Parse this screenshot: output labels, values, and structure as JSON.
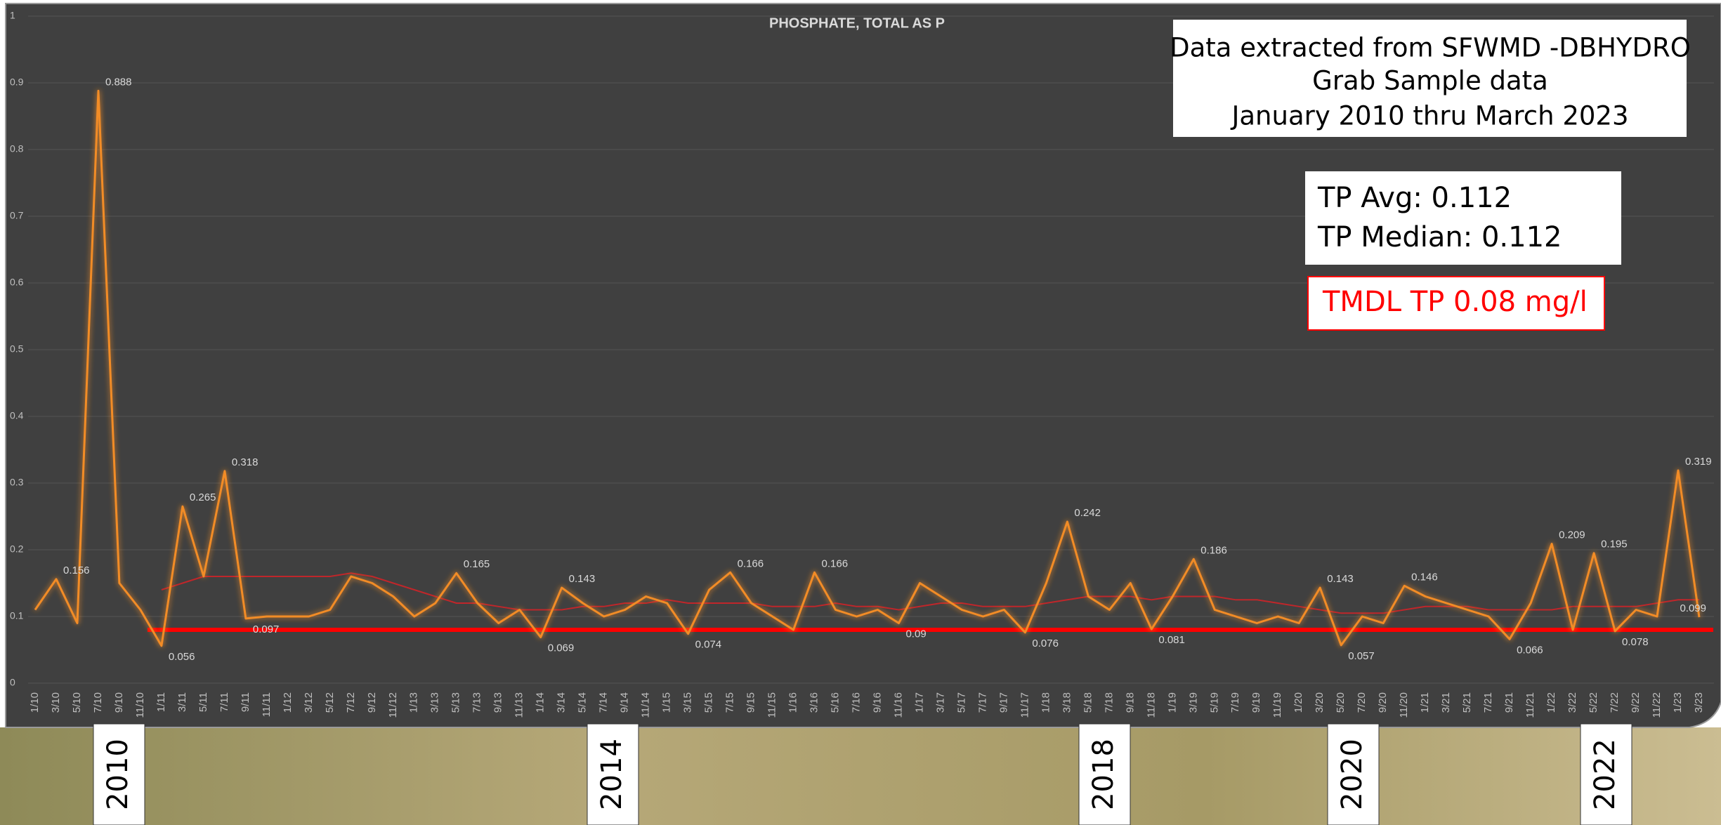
{
  "chart_data": {
    "type": "line",
    "title": "PHOSPHATE, TOTAL AS P",
    "categories": [
      "1/10",
      "3/10",
      "5/10",
      "7/10",
      "9/10",
      "11/10",
      "1/11",
      "3/11",
      "5/11",
      "7/11",
      "9/11",
      "11/11",
      "1/12",
      "3/12",
      "5/12",
      "7/12",
      "9/12",
      "11/12",
      "1/13",
      "3/13",
      "5/13",
      "7/13",
      "9/13",
      "11/13",
      "1/14",
      "3/14",
      "5/14",
      "7/14",
      "9/14",
      "11/14",
      "1/15",
      "3/15",
      "5/15",
      "7/15",
      "9/15",
      "11/15",
      "1/16",
      "3/16",
      "5/16",
      "7/16",
      "9/16",
      "11/16",
      "1/17",
      "3/17",
      "5/17",
      "7/17",
      "9/17",
      "11/17",
      "1/18",
      "3/18",
      "5/18",
      "7/18",
      "9/18",
      "11/18",
      "1/19",
      "3/19",
      "5/19",
      "7/19",
      "9/19",
      "11/19",
      "1/20",
      "3/20",
      "5/20",
      "7/20",
      "9/20",
      "11/20",
      "1/21",
      "3/21",
      "5/21",
      "7/21",
      "9/21",
      "11/21",
      "1/22",
      "3/22",
      "5/22",
      "7/22",
      "9/22",
      "11/22",
      "1/23",
      "3/23"
    ],
    "series": [
      {
        "color": "#f28c28",
        "values": [
          0.11,
          0.156,
          0.09,
          0.888,
          0.15,
          0.11,
          0.056,
          0.265,
          0.16,
          0.318,
          0.097,
          0.1,
          0.1,
          0.1,
          0.11,
          0.16,
          0.15,
          0.13,
          0.1,
          0.12,
          0.165,
          0.12,
          0.09,
          0.11,
          0.069,
          0.143,
          0.12,
          0.1,
          0.11,
          0.13,
          0.12,
          0.074,
          0.14,
          0.166,
          0.12,
          0.1,
          0.08,
          0.166,
          0.11,
          0.1,
          0.11,
          0.09,
          0.15,
          0.13,
          0.11,
          0.1,
          0.11,
          0.076,
          0.15,
          0.242,
          0.13,
          0.11,
          0.15,
          0.081,
          0.13,
          0.186,
          0.11,
          0.1,
          0.09,
          0.1,
          0.09,
          0.143,
          0.057,
          0.1,
          0.09,
          0.146,
          0.13,
          0.12,
          0.11,
          0.1,
          0.066,
          0.12,
          0.209,
          0.08,
          0.195,
          0.078,
          0.11,
          0.1,
          0.319,
          0.099
        ],
        "value_labels": [
          null,
          "0.156",
          null,
          "0.888",
          null,
          null,
          "0.056",
          "0.265",
          null,
          "0.318",
          "0.097",
          null,
          null,
          null,
          null,
          null,
          null,
          null,
          null,
          null,
          "0.165",
          null,
          null,
          null,
          "0.069",
          "0.143",
          null,
          null,
          null,
          null,
          null,
          "0.074",
          null,
          "0.166",
          null,
          null,
          null,
          "0.166",
          null,
          null,
          null,
          "0.09",
          null,
          null,
          null,
          null,
          null,
          "0.076",
          null,
          "0.242",
          null,
          null,
          null,
          "0.081",
          null,
          "0.186",
          null,
          null,
          null,
          null,
          null,
          "0.143",
          "0.057",
          null,
          null,
          "0.146",
          null,
          null,
          null,
          null,
          "0.066",
          null,
          "0.209",
          null,
          "0.195",
          "0.078",
          null,
          null,
          "0.319",
          "0.099"
        ]
      },
      {
        "color": "#c0262a",
        "values": [
          null,
          null,
          null,
          null,
          null,
          null,
          0.14,
          0.15,
          0.16,
          0.16,
          0.16,
          0.16,
          0.16,
          0.16,
          0.16,
          0.165,
          0.16,
          0.15,
          0.14,
          0.13,
          0.12,
          0.12,
          0.115,
          0.11,
          0.11,
          0.11,
          0.115,
          0.115,
          0.12,
          0.12,
          0.125,
          0.12,
          0.12,
          0.12,
          0.12,
          0.115,
          0.115,
          0.115,
          0.12,
          0.115,
          0.115,
          0.11,
          0.115,
          0.12,
          0.12,
          0.115,
          0.115,
          0.115,
          0.12,
          0.125,
          0.13,
          0.13,
          0.13,
          0.125,
          0.13,
          0.13,
          0.13,
          0.125,
          0.125,
          0.12,
          0.115,
          0.11,
          0.105,
          0.105,
          0.105,
          0.11,
          0.115,
          0.115,
          0.115,
          0.11,
          0.11,
          0.11,
          0.11,
          0.115,
          0.115,
          0.115,
          0.115,
          0.12,
          0.125,
          0.125
        ]
      }
    ],
    "reference_line": {
      "value": 0.08,
      "color": "#ff0000"
    },
    "ylim": [
      0,
      1
    ],
    "yticks": [
      0,
      0.1,
      0.2,
      0.3,
      0.4,
      0.5,
      0.6,
      0.7,
      0.8,
      0.9,
      1
    ],
    "grid": true,
    "info_box": [
      "Data extracted from SFWMD -DBHYDRO",
      "Grab Sample data",
      "January 2010 thru March 2023"
    ],
    "stats_box": [
      "TP Avg: 0.112",
      "TP Median: 0.112"
    ],
    "tmdl_label": "TMDL TP 0.08 mg/l",
    "year_markers": [
      "2010",
      "2014",
      "2018",
      "2020",
      "2022"
    ]
  }
}
